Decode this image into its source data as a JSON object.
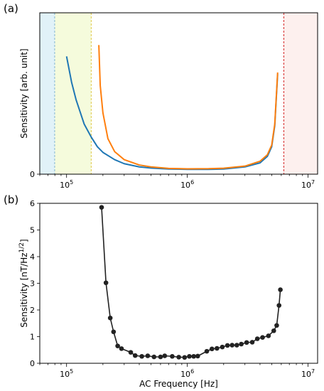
{
  "chart_data": [
    {
      "panel_label": "(a)",
      "type": "line",
      "xscale": "log",
      "xlim": [
        60000,
        12000000
      ],
      "ylim": [
        0,
        1
      ],
      "ylabel": "Sensitivity [arb. unit]",
      "xticks": [
        {
          "value": 100000,
          "label": "10",
          "exp": "5"
        },
        {
          "value": 1000000,
          "label": "10",
          "exp": "6"
        },
        {
          "value": 10000000,
          "label": "10",
          "exp": "7"
        }
      ],
      "yticks": [
        {
          "value": 0,
          "label": "0"
        }
      ],
      "bands": [
        {
          "from": 60000,
          "to": 80000,
          "color": "#e1f2f8",
          "line_at": 80000,
          "line_color": "#1f77b4"
        },
        {
          "from": 80000,
          "to": 160000,
          "color": "#f5fbdc",
          "line_at": 160000,
          "line_color": "#e0c84a"
        },
        {
          "from": 6300000,
          "to": 12000000,
          "color": "#fdf0ee",
          "line_at": 6300000,
          "line_color": "#d62728"
        }
      ],
      "series": [
        {
          "color": "#1f77b4",
          "x": [
            100000,
            110000,
            120000,
            140000,
            160000,
            180000,
            200000,
            250000,
            300000,
            400000,
            500000,
            700000,
            1000000,
            1500000,
            2000000,
            3000000,
            4000000,
            4600000,
            5000000,
            5300000,
            5600000
          ],
          "y": [
            0.73,
            0.57,
            0.46,
            0.31,
            0.23,
            0.17,
            0.135,
            0.09,
            0.065,
            0.045,
            0.038,
            0.032,
            0.03,
            0.03,
            0.032,
            0.045,
            0.07,
            0.11,
            0.17,
            0.3,
            0.62
          ]
        },
        {
          "color": "#ff7f0e",
          "x": [
            185000,
            190000,
            200000,
            220000,
            250000,
            300000,
            400000,
            500000,
            700000,
            1000000,
            1500000,
            2000000,
            3000000,
            4000000,
            4600000,
            5000000,
            5300000,
            5600000
          ],
          "y": [
            0.8,
            0.55,
            0.38,
            0.22,
            0.14,
            0.09,
            0.057,
            0.045,
            0.036,
            0.033,
            0.034,
            0.037,
            0.05,
            0.08,
            0.12,
            0.18,
            0.31,
            0.63
          ]
        }
      ]
    },
    {
      "panel_label": "(b)",
      "type": "scatter",
      "xscale": "log",
      "xlim": [
        60000,
        12000000
      ],
      "ylim": [
        0,
        6
      ],
      "xlabel": "AC Frequency [Hz]",
      "ylabel": "Sensitivity [nT/Hz",
      "ylabel_sup": "1/2",
      "ylabel_end": "]",
      "xticks": [
        {
          "value": 100000,
          "label": "10",
          "exp": "5"
        },
        {
          "value": 1000000,
          "label": "10",
          "exp": "6"
        },
        {
          "value": 10000000,
          "label": "10",
          "exp": "7"
        }
      ],
      "yticks": [
        {
          "value": 0,
          "label": "0"
        },
        {
          "value": 1,
          "label": "1"
        },
        {
          "value": 2,
          "label": "2"
        },
        {
          "value": 3,
          "label": "3"
        },
        {
          "value": 4,
          "label": "4"
        },
        {
          "value": 5,
          "label": "5"
        },
        {
          "value": 6,
          "label": "6"
        }
      ],
      "series": [
        {
          "color": "#222222",
          "x": [
            195000,
            212000,
            230000,
            245000,
            265000,
            285000,
            340000,
            370000,
            420000,
            470000,
            530000,
            600000,
            650000,
            750000,
            850000,
            950000,
            1040000,
            1130000,
            1220000,
            1450000,
            1600000,
            1760000,
            1950000,
            2150000,
            2350000,
            2570000,
            2800000,
            3100000,
            3450000,
            3800000,
            4200000,
            4700000,
            5200000,
            5500000,
            5750000,
            5900000
          ],
          "y": [
            5.85,
            3.02,
            1.7,
            1.18,
            0.65,
            0.55,
            0.41,
            0.29,
            0.26,
            0.28,
            0.24,
            0.24,
            0.28,
            0.26,
            0.23,
            0.22,
            0.26,
            0.26,
            0.27,
            0.45,
            0.54,
            0.56,
            0.61,
            0.67,
            0.68,
            0.68,
            0.72,
            0.78,
            0.79,
            0.92,
            0.97,
            1.03,
            1.22,
            1.42,
            2.17,
            2.76
          ]
        }
      ]
    }
  ]
}
